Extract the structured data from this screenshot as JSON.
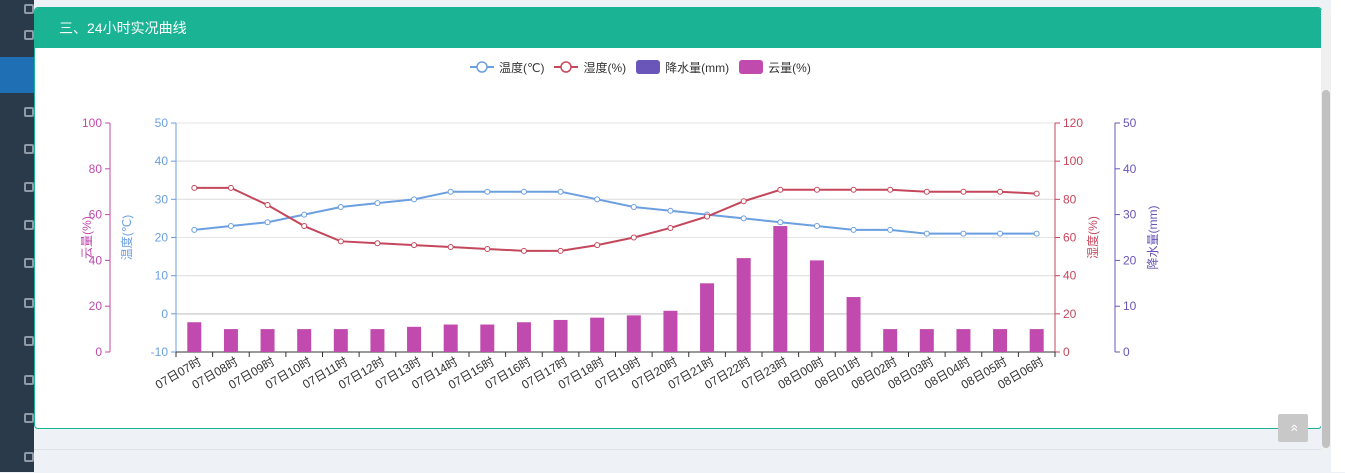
{
  "panel": {
    "title": "三、24小时实况曲线"
  },
  "totop": {
    "label": "»"
  },
  "colors": {
    "temperature": "#6b9fe0",
    "humidity": "#c5475c",
    "precipitation": "#6a55b8",
    "cloud": "#c14aae",
    "header": "#1ab394"
  },
  "chart_data": {
    "type": "bar",
    "categories": [
      "07日07时",
      "07日08时",
      "07日09时",
      "07日10时",
      "07日11时",
      "07日12时",
      "07日13时",
      "07日14时",
      "07日15时",
      "07日16时",
      "07日17时",
      "07日18时",
      "07日19时",
      "07日20时",
      "07日21时",
      "07日22时",
      "07日23时",
      "08日00时",
      "08日01时",
      "08日02时",
      "08日03时",
      "08日04时",
      "08日05时",
      "08日06时"
    ],
    "legend": [
      "温度(℃)",
      "湿度(%)",
      "降水量(mm)",
      "云量(%)"
    ],
    "series": [
      {
        "name": "温度(℃)",
        "type": "line",
        "axis": "temperature",
        "values": [
          22,
          23,
          24,
          26,
          28,
          29,
          30,
          32,
          32,
          32,
          32,
          30,
          28,
          27,
          26,
          25,
          24,
          23,
          22,
          22,
          21,
          21,
          21,
          21
        ]
      },
      {
        "name": "湿度(%)",
        "type": "line",
        "axis": "humidity",
        "values": [
          86,
          86,
          77,
          66,
          58,
          57,
          56,
          55,
          54,
          53,
          53,
          56,
          60,
          65,
          71,
          79,
          85,
          85,
          85,
          85,
          84,
          84,
          84,
          83
        ]
      },
      {
        "name": "降水量(mm)",
        "type": "bar",
        "axis": "precipitation",
        "values": [
          0,
          0,
          0,
          0,
          0,
          0,
          0,
          0,
          0,
          0,
          0,
          0,
          0,
          0,
          0,
          0,
          0,
          0,
          0,
          0,
          0,
          0,
          0,
          0
        ]
      },
      {
        "name": "云量(%)",
        "type": "bar",
        "axis": "cloud",
        "values": [
          13,
          10,
          10,
          10,
          10,
          10,
          11,
          12,
          12,
          13,
          14,
          15,
          16,
          18,
          30,
          41,
          55,
          40,
          24,
          10,
          10,
          10,
          10,
          10
        ]
      }
    ],
    "axes": {
      "cloud": {
        "label": "云量(%)",
        "range": [
          0,
          100
        ],
        "ticks": [
          0,
          20,
          40,
          60,
          80,
          100
        ]
      },
      "temperature": {
        "label": "温度(℃)",
        "range": [
          -10,
          50
        ],
        "ticks": [
          -10,
          0,
          10,
          20,
          30,
          40,
          50
        ]
      },
      "humidity": {
        "label": "湿度(%)",
        "range": [
          0,
          120
        ],
        "ticks": [
          0,
          20,
          40,
          60,
          80,
          100,
          120
        ]
      },
      "precipitation": {
        "label": "降水量(mm)",
        "range": [
          0,
          50
        ],
        "ticks": [
          0,
          10,
          20,
          30,
          40,
          50
        ]
      }
    }
  }
}
